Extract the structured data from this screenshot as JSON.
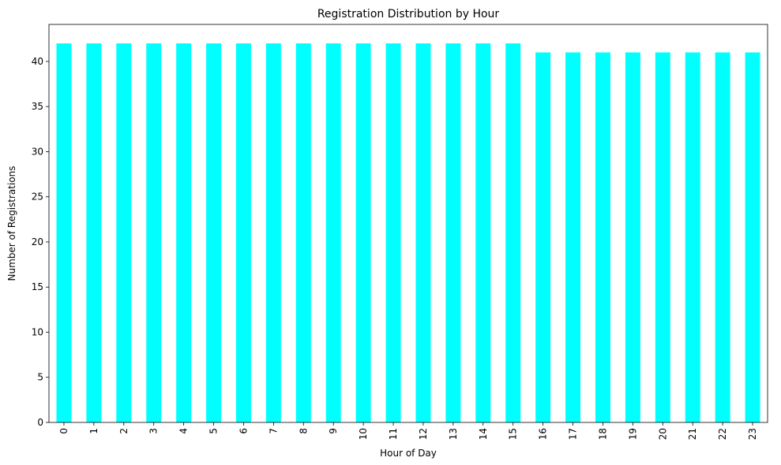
{
  "chart_data": {
    "type": "bar",
    "title": "Registration Distribution by Hour",
    "xlabel": "Hour of Day",
    "ylabel": "Number of Registrations",
    "categories": [
      "0",
      "1",
      "2",
      "3",
      "4",
      "5",
      "6",
      "7",
      "8",
      "9",
      "10",
      "11",
      "12",
      "13",
      "14",
      "15",
      "16",
      "17",
      "18",
      "19",
      "20",
      "21",
      "22",
      "23"
    ],
    "values": [
      42,
      42,
      42,
      42,
      42,
      42,
      42,
      42,
      42,
      42,
      42,
      42,
      42,
      42,
      42,
      42,
      41,
      41,
      41,
      41,
      41,
      41,
      41,
      41
    ],
    "ylim": [
      0,
      44.1
    ],
    "yticks": [
      0,
      5,
      10,
      15,
      20,
      25,
      30,
      35,
      40
    ],
    "bar_color": "#00ffff",
    "grid": false,
    "x_tick_rotation": "vertical"
  }
}
